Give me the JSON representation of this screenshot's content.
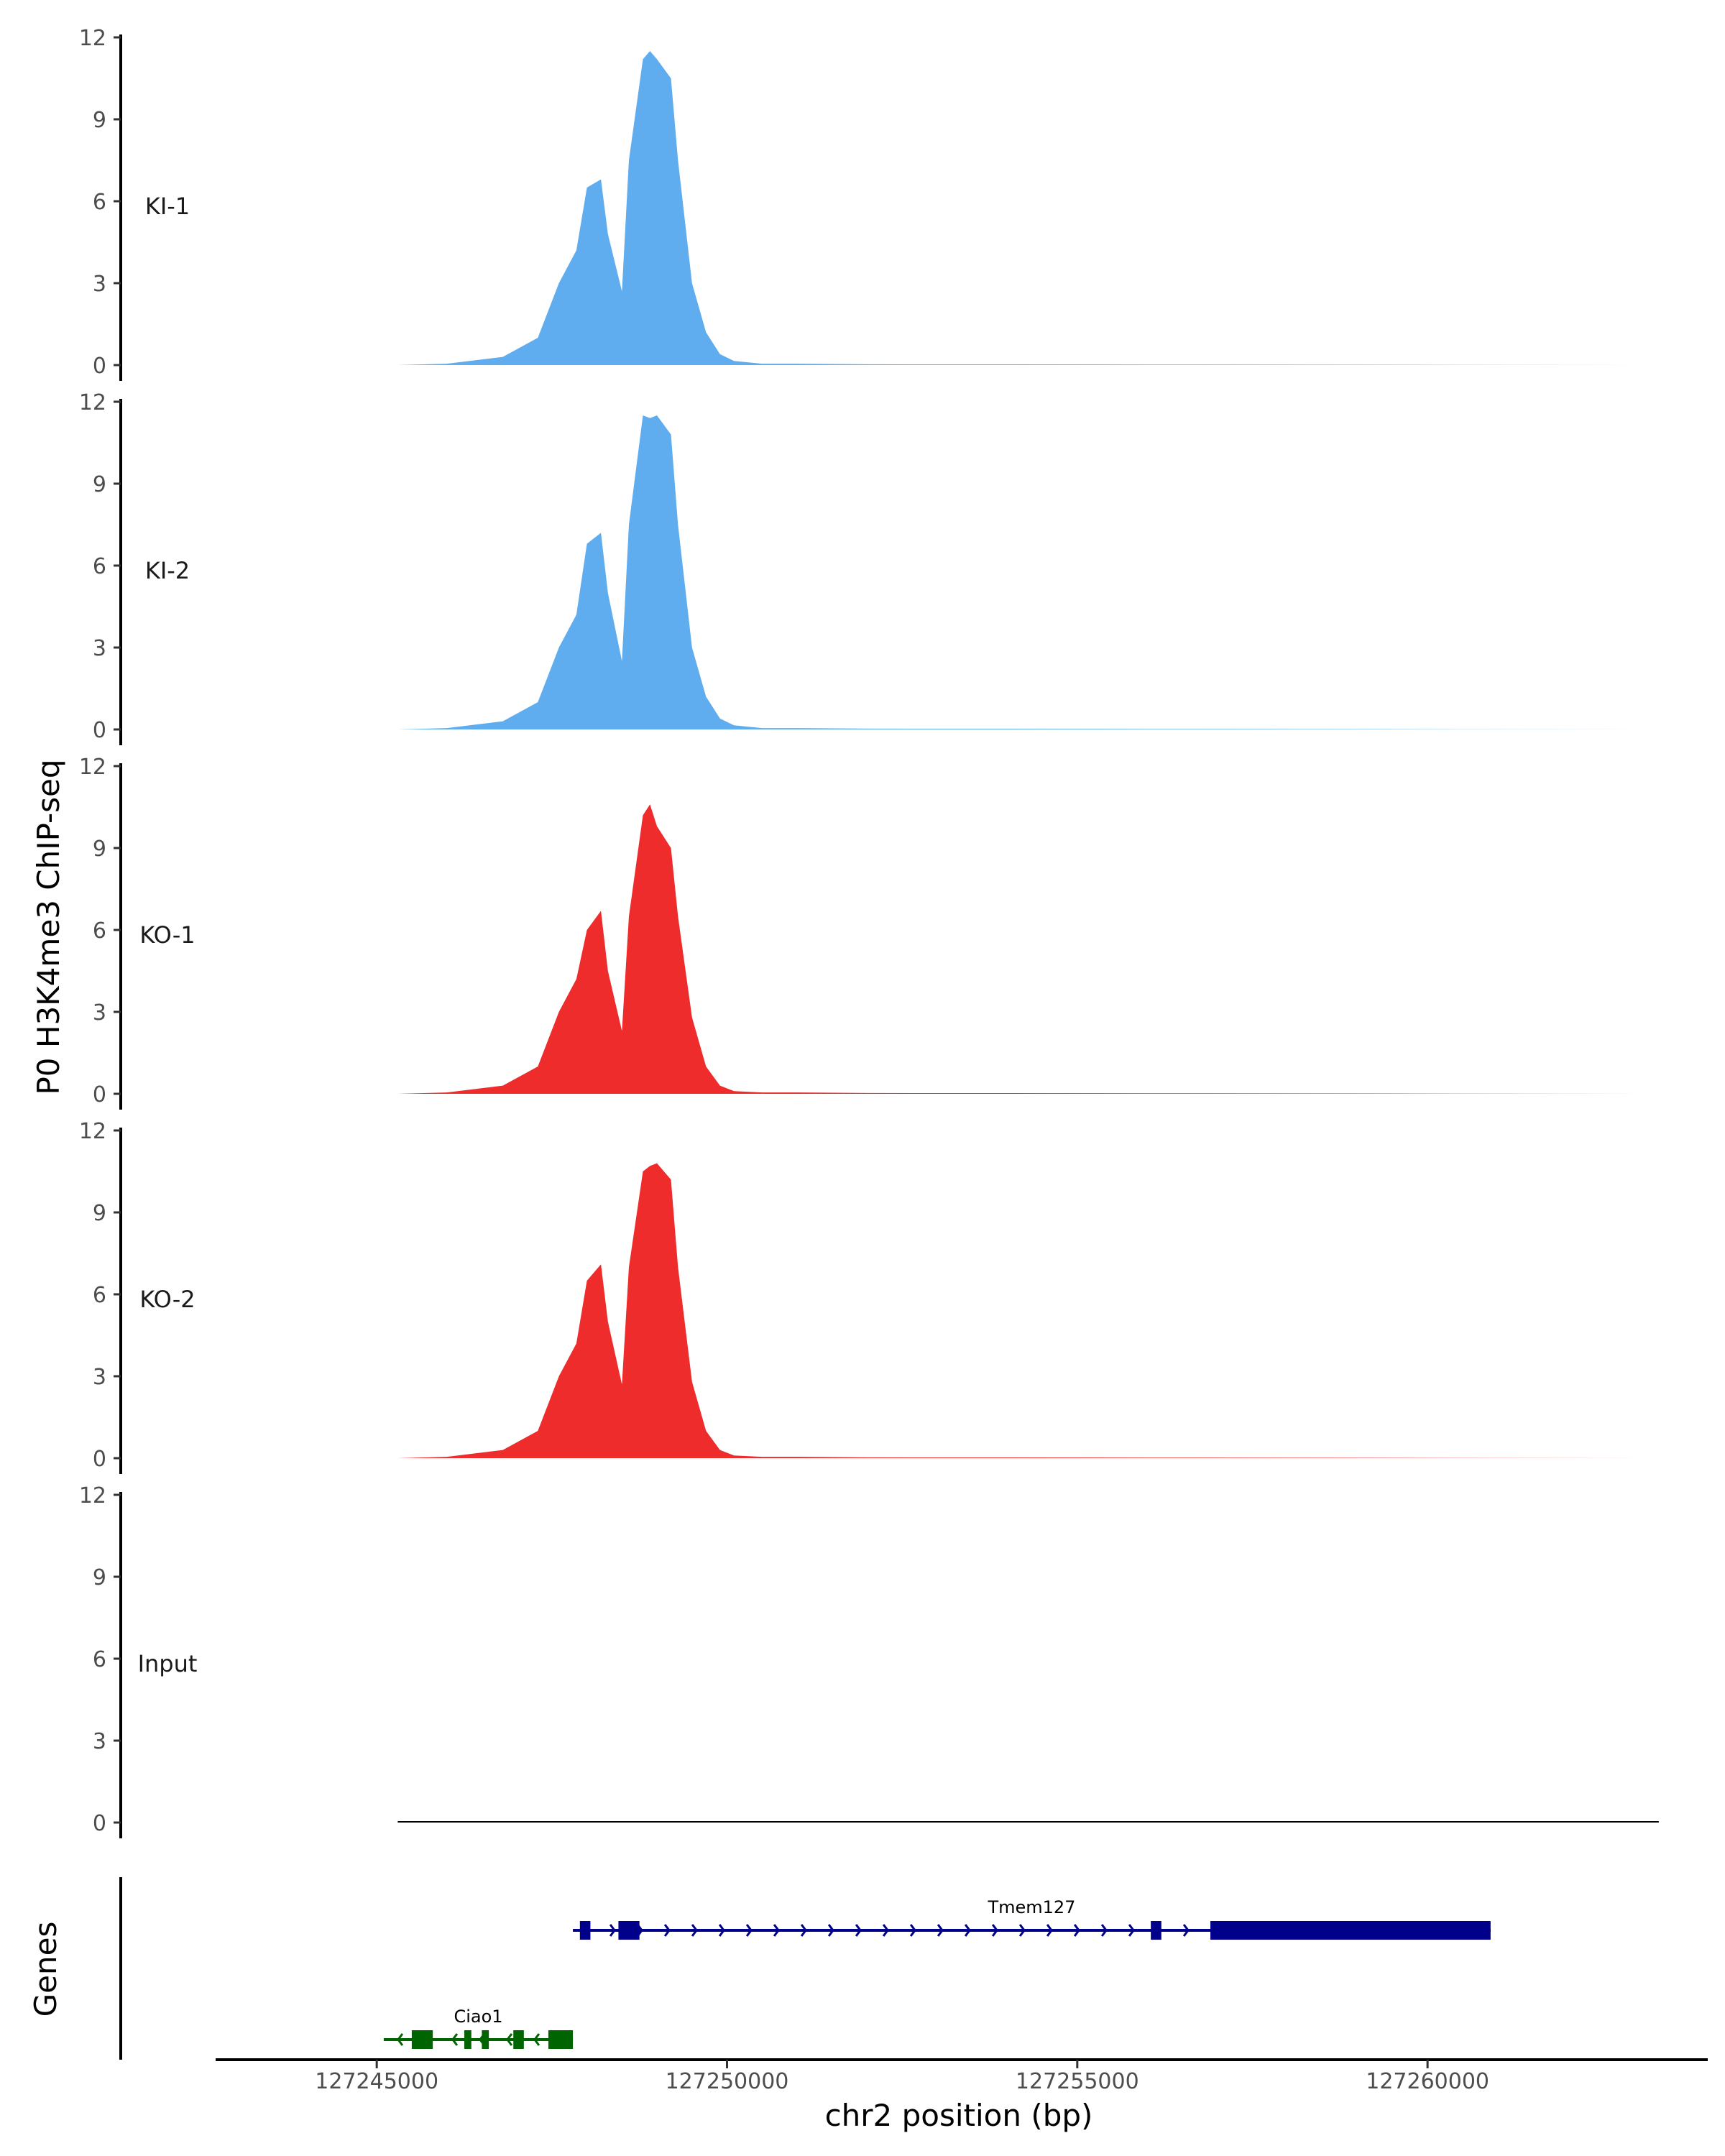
{
  "chart_data": {
    "type": "area",
    "ylabel": "P0 H3K4me3 ChIP-seq",
    "xlabel": "chr2 position (bp)",
    "xlim": [
      127242700,
      127264000
    ],
    "ylim": [
      0,
      12
    ],
    "ytick_values": [
      0,
      3,
      6,
      9,
      12
    ],
    "ytick_labels": [
      "0",
      "3",
      "6",
      "9",
      "12"
    ],
    "xtick_values": [
      127245000,
      127250000,
      127255000,
      127260000
    ],
    "xtick_labels": [
      "127245000",
      "127250000",
      "127255000",
      "127260000"
    ],
    "tracks": [
      {
        "name": "KI-1",
        "color": "#5fadee",
        "x": [
          127245300,
          127246000,
          127246800,
          127247300,
          127247600,
          127247850,
          127248000,
          127248200,
          127248300,
          127248500,
          127248600,
          127248800,
          127248900,
          127249000,
          127249200,
          127249300,
          127249500,
          127249700,
          127249900,
          127250100,
          127250500,
          127251000,
          127252000,
          127256000,
          127263300
        ],
        "y": [
          0,
          0.05,
          0.3,
          1.0,
          3.0,
          4.2,
          6.5,
          6.8,
          4.8,
          2.7,
          7.5,
          11.2,
          11.5,
          11.2,
          10.5,
          7.5,
          3.0,
          1.2,
          0.4,
          0.15,
          0.05,
          0.05,
          0.03,
          0.02,
          0
        ]
      },
      {
        "name": "KI-2",
        "color": "#5fadee",
        "x": [
          127245300,
          127246000,
          127246800,
          127247300,
          127247600,
          127247850,
          127248000,
          127248200,
          127248300,
          127248500,
          127248600,
          127248800,
          127248900,
          127249000,
          127249200,
          127249300,
          127249500,
          127249700,
          127249900,
          127250100,
          127250500,
          127251000,
          127252000,
          127256000,
          127263300
        ],
        "y": [
          0,
          0.05,
          0.3,
          1.0,
          3.0,
          4.2,
          6.8,
          7.2,
          5.0,
          2.5,
          7.5,
          11.5,
          11.4,
          11.5,
          10.8,
          7.5,
          3.0,
          1.2,
          0.4,
          0.15,
          0.05,
          0.05,
          0.03,
          0.02,
          0
        ]
      },
      {
        "name": "KO-1",
        "color": "#ee2c2c",
        "x": [
          127245300,
          127246000,
          127246800,
          127247300,
          127247600,
          127247850,
          127248000,
          127248200,
          127248300,
          127248500,
          127248600,
          127248800,
          127248900,
          127249000,
          127249200,
          127249300,
          127249500,
          127249700,
          127249900,
          127250100,
          127250500,
          127251000,
          127252000,
          127256000,
          127263300
        ],
        "y": [
          0,
          0.05,
          0.3,
          1.0,
          3.0,
          4.2,
          6.0,
          6.7,
          4.5,
          2.3,
          6.5,
          10.2,
          10.6,
          9.8,
          9.0,
          6.5,
          2.8,
          1.0,
          0.3,
          0.1,
          0.05,
          0.05,
          0.03,
          0.02,
          0
        ]
      },
      {
        "name": "KO-2",
        "color": "#ee2c2c",
        "x": [
          127245300,
          127246000,
          127246800,
          127247300,
          127247600,
          127247850,
          127248000,
          127248200,
          127248300,
          127248500,
          127248600,
          127248800,
          127248900,
          127249000,
          127249200,
          127249300,
          127249500,
          127249700,
          127249900,
          127250100,
          127250500,
          127251000,
          127252000,
          127256000,
          127263300
        ],
        "y": [
          0,
          0.05,
          0.3,
          1.0,
          3.0,
          4.2,
          6.5,
          7.1,
          5.0,
          2.7,
          7.0,
          10.5,
          10.7,
          10.8,
          10.2,
          7.0,
          2.8,
          1.0,
          0.3,
          0.1,
          0.05,
          0.05,
          0.03,
          0.02,
          0
        ]
      },
      {
        "name": "Input",
        "color": "#000000",
        "x": [
          127245300,
          127263300
        ],
        "y": [
          0.05,
          0.05
        ]
      }
    ],
    "genes_title": "Genes",
    "genes": [
      {
        "name": "Tmem127",
        "color": "#00008b",
        "strand": "+",
        "start": 127247800,
        "end": 127260900,
        "exons": [
          [
            127247900,
            127248050
          ],
          [
            127248450,
            127248750
          ],
          [
            127256050,
            127256200
          ],
          [
            127256900,
            127260900
          ]
        ]
      },
      {
        "name": "Ciao1",
        "color": "#006400",
        "strand": "-",
        "start": 127245100,
        "end": 127247800,
        "exons": [
          [
            127245500,
            127245800
          ],
          [
            127246250,
            127246350
          ],
          [
            127246500,
            127246600
          ],
          [
            127246950,
            127247100
          ],
          [
            127247450,
            127247800
          ]
        ]
      }
    ]
  }
}
